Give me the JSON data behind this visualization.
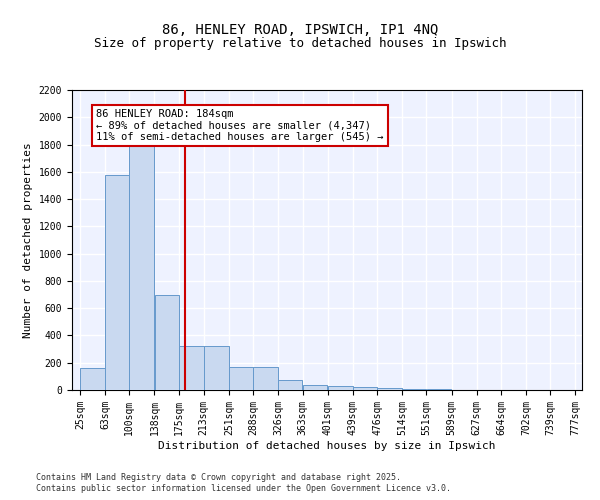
{
  "title": "86, HENLEY ROAD, IPSWICH, IP1 4NQ",
  "subtitle": "Size of property relative to detached houses in Ipswich",
  "xlabel": "Distribution of detached houses by size in Ipswich",
  "ylabel": "Number of detached properties",
  "bins": [
    25,
    63,
    100,
    138,
    175,
    213,
    251,
    288,
    326,
    363,
    401,
    439,
    476,
    514,
    551,
    589,
    627,
    664,
    702,
    739,
    777
  ],
  "counts": [
    160,
    1580,
    1800,
    700,
    320,
    320,
    170,
    170,
    75,
    40,
    30,
    20,
    15,
    5,
    5,
    2,
    2,
    2,
    2,
    2
  ],
  "bar_color": "#c9d9f0",
  "bar_edge_color": "#6699cc",
  "vline_x": 184,
  "vline_color": "#cc0000",
  "annotation_line1": "86 HENLEY ROAD: 184sqm",
  "annotation_line2": "← 89% of detached houses are smaller (4,347)",
  "annotation_line3": "11% of semi-detached houses are larger (545) →",
  "annotation_box_color": "#cc0000",
  "ylim": [
    0,
    2200
  ],
  "yticks": [
    0,
    200,
    400,
    600,
    800,
    1000,
    1200,
    1400,
    1600,
    1800,
    2000,
    2200
  ],
  "background_color": "#eef2ff",
  "grid_color": "#ffffff",
  "footer1": "Contains HM Land Registry data © Crown copyright and database right 2025.",
  "footer2": "Contains public sector information licensed under the Open Government Licence v3.0.",
  "title_fontsize": 10,
  "subtitle_fontsize": 9,
  "axis_label_fontsize": 8,
  "tick_fontsize": 7,
  "annotation_fontsize": 7.5,
  "footer_fontsize": 6
}
